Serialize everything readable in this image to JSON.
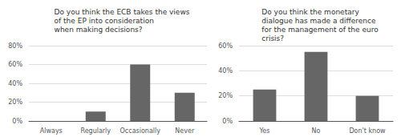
{
  "chart_data": [
    {
      "type": "bar",
      "title": "Do you think the ECB takes the views\nof the EP into consideration\nwhen making decisions?",
      "categories": [
        "Always",
        "Regularly",
        "Occasionally",
        "Never"
      ],
      "values": [
        0,
        10,
        60,
        30
      ],
      "color": "#666666",
      "ylim": [
        0,
        80
      ],
      "yticks": [
        {
          "value": 0,
          "label": "0%"
        },
        {
          "value": 20,
          "label": "20%"
        },
        {
          "value": 40,
          "label": "40%"
        },
        {
          "value": 60,
          "label": "60%"
        },
        {
          "value": 80,
          "label": "80%"
        }
      ],
      "grid": true
    },
    {
      "type": "bar",
      "title": "Do you think the monetary\ndialogue has made a difference\nfor the management of the euro\ncrisis?",
      "categories": [
        "Yes",
        "No",
        "Don't know"
      ],
      "values": [
        25,
        55,
        20
      ],
      "color": "#666666",
      "ylim": [
        0,
        60
      ],
      "yticks": [
        {
          "value": 0,
          "label": "0%"
        },
        {
          "value": 20,
          "label": "20%"
        },
        {
          "value": 40,
          "label": "40%"
        },
        {
          "value": 60,
          "label": "60%"
        }
      ],
      "grid": true
    }
  ]
}
